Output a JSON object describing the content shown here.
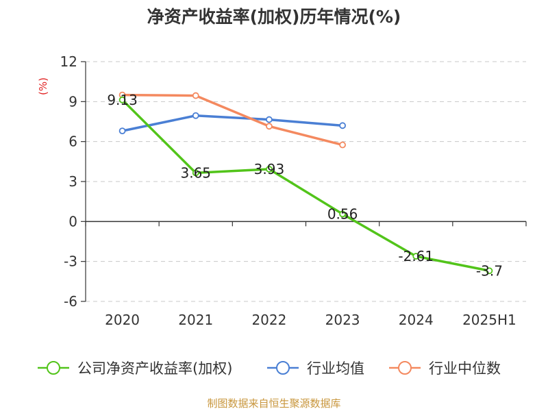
{
  "chart_data": {
    "type": "line",
    "title": "净资产收益率(加权)历年情况(%)",
    "ylabel": "(%)",
    "categories": [
      "2020",
      "2021",
      "2022",
      "2023",
      "2024",
      "2025H1"
    ],
    "ylim": [
      -6,
      12
    ],
    "yticks": [
      "12",
      "9",
      "6",
      "3",
      "0",
      "-3",
      "-6"
    ],
    "grid": true,
    "legend_position": "bottom",
    "series": [
      {
        "name": "公司净资产收益率(加权)",
        "color": "#52c41a",
        "values": [
          9.13,
          3.65,
          3.93,
          0.56,
          -2.61,
          -3.7
        ],
        "labels": [
          "9.13",
          "3.65",
          "3.93",
          "0.56",
          "-2.61",
          "-3.7"
        ]
      },
      {
        "name": "行业均值",
        "color": "#4a7fd4",
        "values": [
          6.8,
          7.95,
          7.65,
          7.2,
          null,
          null
        ]
      },
      {
        "name": "行业中位数",
        "color": "#f4895f",
        "values": [
          9.5,
          9.45,
          7.15,
          5.75,
          null,
          null
        ]
      }
    ]
  },
  "source": "制图数据来自恒生聚源数据库"
}
